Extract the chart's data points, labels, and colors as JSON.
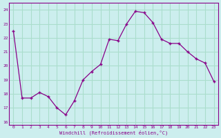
{
  "x": [
    0,
    1,
    2,
    3,
    4,
    5,
    6,
    7,
    8,
    9,
    10,
    11,
    12,
    13,
    14,
    15,
    16,
    17,
    18,
    19,
    20,
    21,
    22,
    23
  ],
  "y": [
    22.5,
    17.7,
    17.7,
    18.1,
    17.8,
    17.0,
    16.5,
    17.5,
    19.0,
    19.6,
    20.1,
    21.9,
    21.8,
    23.0,
    23.9,
    23.8,
    23.1,
    21.9,
    21.6,
    21.6,
    21.0,
    20.5,
    20.2,
    18.9
  ],
  "xlabel": "Windchill (Refroidissement éolien,°C)",
  "ylim": [
    15.8,
    24.5
  ],
  "xlim": [
    -0.5,
    23.5
  ],
  "yticks": [
    16,
    17,
    18,
    19,
    20,
    21,
    22,
    23,
    24
  ],
  "xticks": [
    0,
    1,
    2,
    3,
    4,
    5,
    6,
    7,
    8,
    9,
    10,
    11,
    12,
    13,
    14,
    15,
    16,
    17,
    18,
    19,
    20,
    21,
    22,
    23
  ],
  "line_color": "#880088",
  "marker": "+",
  "background_color": "#cceeee",
  "grid_color": "#aaddcc",
  "label_color": "#880088",
  "font_family": "monospace",
  "fig_width": 3.2,
  "fig_height": 2.0,
  "dpi": 100
}
